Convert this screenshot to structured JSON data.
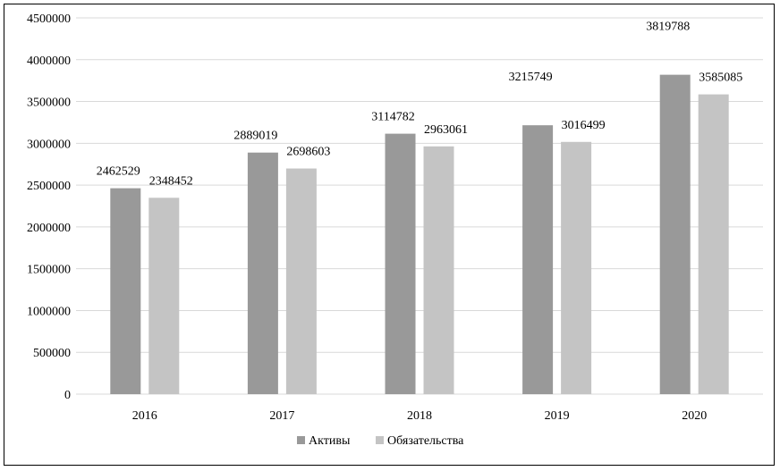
{
  "chart_data": {
    "type": "bar",
    "categories": [
      "2016",
      "2017",
      "2018",
      "2019",
      "2020"
    ],
    "series": [
      {
        "name": "Активы",
        "values": [
          2462529,
          2889019,
          3114782,
          3215749,
          3819788
        ],
        "color": "#999999"
      },
      {
        "name": "Обязательства",
        "values": [
          2348452,
          2698603,
          2963061,
          3016499,
          3585085
        ],
        "color": "#c4c4c4"
      }
    ],
    "yticks": [
      "0",
      "500000",
      "1000000",
      "1500000",
      "2000000",
      "2500000",
      "3000000",
      "3500000",
      "4000000",
      "4500000"
    ],
    "ylim": [
      0,
      4500000
    ],
    "grid": true,
    "legend_position": "bottom-center",
    "gridline_color": "#d9d9d9"
  }
}
